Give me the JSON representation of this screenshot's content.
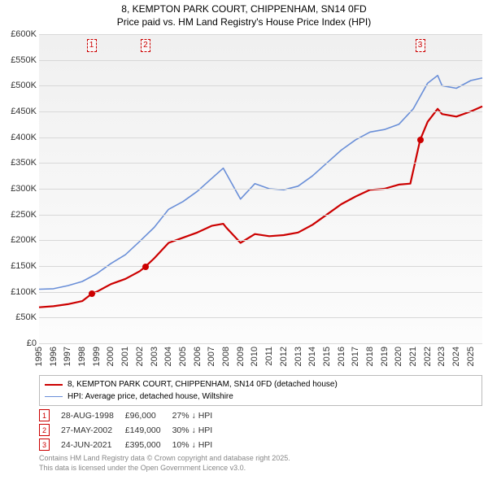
{
  "title": {
    "line1": "8, KEMPTON PARK COURT, CHIPPENHAM, SN14 0FD",
    "line2": "Price paid vs. HM Land Registry's House Price Index (HPI)",
    "fontsize": 12,
    "color": "#000000"
  },
  "chart": {
    "type": "line",
    "background_gradient": [
      "#f0f0f0",
      "#fcfcfc"
    ],
    "grid_color": "#d8d8d8",
    "ylim": [
      0,
      600000
    ],
    "ytick_step": 50000,
    "yticks": [
      "£0",
      "£50K",
      "£100K",
      "£150K",
      "£200K",
      "£250K",
      "£300K",
      "£350K",
      "£400K",
      "£450K",
      "£500K",
      "£550K",
      "£600K"
    ],
    "xlim": [
      1995,
      2025.8
    ],
    "xticks": [
      "1995",
      "1996",
      "1997",
      "1998",
      "1999",
      "2000",
      "2001",
      "2002",
      "2003",
      "2004",
      "2005",
      "2006",
      "2007",
      "2008",
      "2009",
      "2010",
      "2011",
      "2012",
      "2013",
      "2014",
      "2015",
      "2016",
      "2017",
      "2018",
      "2019",
      "2020",
      "2021",
      "2022",
      "2023",
      "2024",
      "2025"
    ],
    "label_fontsize": 11,
    "series": [
      {
        "name": "price_paid",
        "label": "8, KEMPTON PARK COURT, CHIPPENHAM, SN14 0FD (detached house)",
        "color": "#cc0000",
        "line_width": 2.2,
        "points": [
          [
            1995,
            70000
          ],
          [
            1996,
            72000
          ],
          [
            1997,
            76000
          ],
          [
            1998,
            82000
          ],
          [
            1998.65,
            96000
          ],
          [
            1999,
            100000
          ],
          [
            2000,
            115000
          ],
          [
            2001,
            125000
          ],
          [
            2002,
            140000
          ],
          [
            2002.4,
            149000
          ],
          [
            2003,
            165000
          ],
          [
            2004,
            195000
          ],
          [
            2005,
            205000
          ],
          [
            2006,
            215000
          ],
          [
            2007,
            228000
          ],
          [
            2007.8,
            232000
          ],
          [
            2008,
            225000
          ],
          [
            2009,
            195000
          ],
          [
            2010,
            212000
          ],
          [
            2011,
            208000
          ],
          [
            2012,
            210000
          ],
          [
            2013,
            215000
          ],
          [
            2014,
            230000
          ],
          [
            2015,
            250000
          ],
          [
            2016,
            270000
          ],
          [
            2017,
            285000
          ],
          [
            2018,
            298000
          ],
          [
            2019,
            300000
          ],
          [
            2020,
            308000
          ],
          [
            2020.8,
            310000
          ],
          [
            2021.48,
            395000
          ],
          [
            2022,
            430000
          ],
          [
            2022.7,
            455000
          ],
          [
            2023,
            445000
          ],
          [
            2024,
            440000
          ],
          [
            2025,
            450000
          ],
          [
            2025.8,
            460000
          ]
        ]
      },
      {
        "name": "hpi",
        "label": "HPI: Average price, detached house, Wiltshire",
        "color": "#6a8fd8",
        "line_width": 1.6,
        "points": [
          [
            1995,
            105000
          ],
          [
            1996,
            106000
          ],
          [
            1997,
            112000
          ],
          [
            1998,
            120000
          ],
          [
            1999,
            135000
          ],
          [
            2000,
            155000
          ],
          [
            2001,
            172000
          ],
          [
            2002,
            198000
          ],
          [
            2003,
            225000
          ],
          [
            2004,
            260000
          ],
          [
            2005,
            275000
          ],
          [
            2006,
            295000
          ],
          [
            2007,
            320000
          ],
          [
            2007.8,
            340000
          ],
          [
            2008,
            330000
          ],
          [
            2009,
            280000
          ],
          [
            2010,
            310000
          ],
          [
            2011,
            300000
          ],
          [
            2012,
            298000
          ],
          [
            2013,
            305000
          ],
          [
            2014,
            325000
          ],
          [
            2015,
            350000
          ],
          [
            2016,
            375000
          ],
          [
            2017,
            395000
          ],
          [
            2018,
            410000
          ],
          [
            2019,
            415000
          ],
          [
            2020,
            425000
          ],
          [
            2021,
            455000
          ],
          [
            2022,
            505000
          ],
          [
            2022.7,
            520000
          ],
          [
            2023,
            500000
          ],
          [
            2024,
            495000
          ],
          [
            2025,
            510000
          ],
          [
            2025.8,
            515000
          ]
        ]
      }
    ],
    "markers": [
      {
        "num": "1",
        "x": 1998.65,
        "y": 96000
      },
      {
        "num": "2",
        "x": 2002.4,
        "y": 149000
      },
      {
        "num": "3",
        "x": 2021.48,
        "y": 395000
      }
    ],
    "marker_box_color": "#cc0000"
  },
  "legend": {
    "border_color": "#bbbbbb",
    "fontsize": 10,
    "items": [
      {
        "color": "#cc0000",
        "width": 2.2,
        "label": "8, KEMPTON PARK COURT, CHIPPENHAM, SN14 0FD (detached house)"
      },
      {
        "color": "#6a8fd8",
        "width": 1.6,
        "label": "HPI: Average price, detached house, Wiltshire"
      }
    ]
  },
  "transactions": {
    "fontsize": 10.5,
    "num_box_color": "#cc0000",
    "rows": [
      {
        "num": "1",
        "date": "28-AUG-1998",
        "price": "£96,000",
        "delta": "27% ↓ HPI"
      },
      {
        "num": "2",
        "date": "27-MAY-2002",
        "price": "£149,000",
        "delta": "30% ↓ HPI"
      },
      {
        "num": "3",
        "date": "24-JUN-2021",
        "price": "£395,000",
        "delta": "10% ↓ HPI"
      }
    ]
  },
  "footer": {
    "line1": "Contains HM Land Registry data © Crown copyright and database right 2025.",
    "line2": "This data is licensed under the Open Government Licence v3.0.",
    "color": "#888888",
    "fontsize": 9
  }
}
